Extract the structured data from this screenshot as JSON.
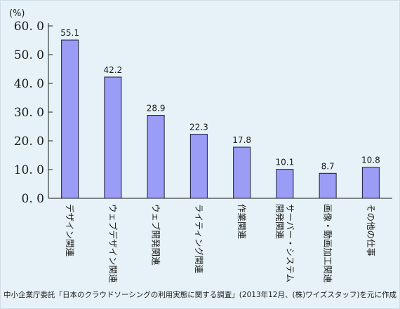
{
  "chart_data": {
    "type": "bar",
    "unit_label": "(%)",
    "categories": [
      "デザイン関連",
      "ウェブデザイン関連",
      "ウェブ開発関連",
      "ライティング関連",
      "作業関連",
      "開発関連サーバー・システム",
      "画像・動画加工関連",
      "その他の仕事"
    ],
    "category_lines": [
      [
        "デザイン関連"
      ],
      [
        "ウェブデザイン関連"
      ],
      [
        "ウェブ開発関連"
      ],
      [
        "ライティング関連"
      ],
      [
        "作業関連"
      ],
      [
        "開発関連",
        "サーバー・システム"
      ],
      [
        "画像・動画加工関連"
      ],
      [
        "その他の仕事"
      ]
    ],
    "values": [
      55.1,
      42.2,
      28.9,
      22.3,
      17.8,
      10.1,
      8.7,
      10.8
    ],
    "value_labels": [
      "55.1",
      "42.2",
      "28.9",
      "22.3",
      "17.8",
      "10.1",
      "8.7",
      "10.8"
    ],
    "ylim": [
      0,
      60
    ],
    "yticks": [
      0,
      10,
      20,
      30,
      40,
      50,
      60
    ],
    "ytick_labels": [
      "0. 0",
      "10. 0",
      "20. 0",
      "30. 0",
      "40. 0",
      "50. 0",
      "60. 0"
    ],
    "grid": false,
    "bar_color": "#9b9cf5",
    "bar_edge_color": "#1c1c3c"
  },
  "caption": "中小企業庁委託「日本のクラウドソーシングの利用実態に関する調査」(2013年12月、(株)ワイズスタッフ)を元に作成"
}
